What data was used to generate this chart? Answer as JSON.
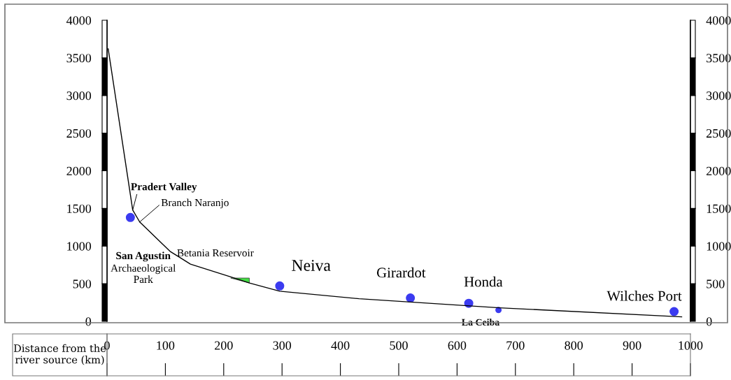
{
  "chart_data": {
    "type": "line",
    "xlabel": "Distance from the river source (km)",
    "xlim": [
      0,
      1000
    ],
    "xticks": [
      0,
      100,
      200,
      300,
      400,
      500,
      600,
      700,
      800,
      900,
      1000
    ],
    "ylim": [
      0,
      4000
    ],
    "yticks": [
      0,
      500,
      1000,
      1500,
      2000,
      2500,
      3000,
      3500,
      4000
    ],
    "y2lim": [
      0,
      4000
    ],
    "y2ticks": [
      0,
      500,
      1000,
      1500,
      2000,
      2500,
      3000,
      3500,
      4000
    ],
    "grid": false,
    "series": [
      {
        "type": "line",
        "color": "#000000",
        "x": [
          2,
          44,
          56,
          108,
          143,
          212,
          244,
          296,
          432,
          672,
          985
        ],
        "values": [
          3620,
          1480,
          1320,
          930,
          760,
          590,
          510,
          400,
          300,
          180,
          60
        ]
      },
      {
        "type": "scatter",
        "color": "#3b3bf0",
        "x": [
          40,
          296,
          520,
          620,
          972
        ],
        "values": [
          1380,
          470,
          310,
          240,
          130
        ]
      },
      {
        "type": "scatter",
        "color": "#3b3bf0",
        "x": [
          671
        ],
        "values": [
          150
        ]
      }
    ],
    "annotations": [
      {
        "text": "Pradert Valley",
        "x": 44,
        "y": 1480
      },
      {
        "text": "Branch Naranjo",
        "x": 56,
        "y": 1320
      },
      "San Agustin",
      "Archaeological\nPark",
      {
        "text": "Betania Reservoir",
        "x": 244,
        "y": 510
      },
      {
        "text": "Neiva",
        "x": 296,
        "y": 470
      },
      {
        "text": "Girardot",
        "x": 520,
        "y": 310
      },
      {
        "text": "Honda",
        "x": 620,
        "y": 240
      },
      {
        "text": "La Ceiba",
        "x": 671,
        "y": 150
      },
      {
        "text": "Wilches Port",
        "x": 972,
        "y": 130
      }
    ]
  }
}
